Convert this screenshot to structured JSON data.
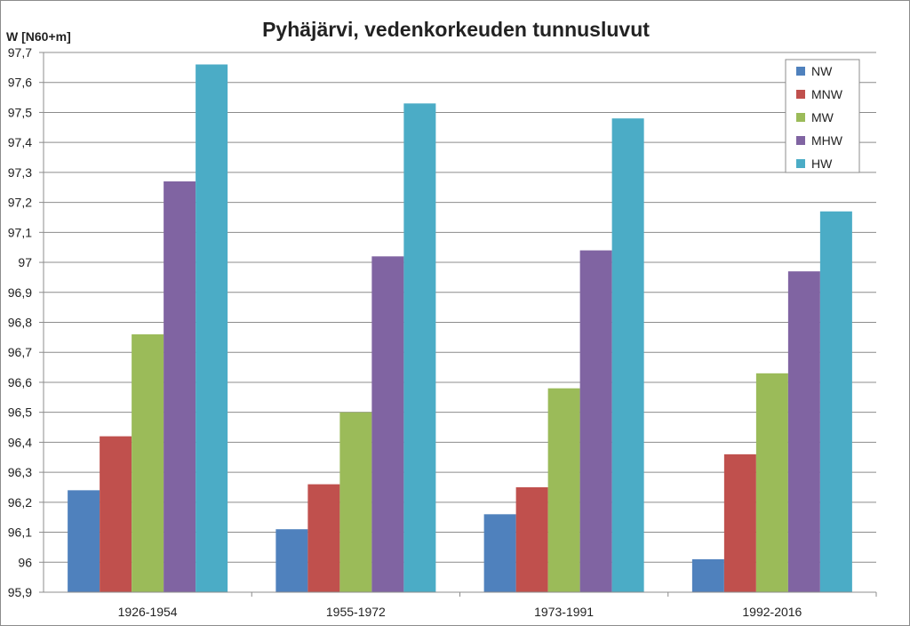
{
  "chart_data": {
    "type": "bar",
    "title": "Pyhäjärvi, vedenkorkeuden tunnusluvut",
    "ylabel": "W [N60+m]",
    "xlabel": "",
    "ylim": [
      95.9,
      97.7
    ],
    "yticks": [
      95.9,
      96,
      96.1,
      96.2,
      96.3,
      96.4,
      96.5,
      96.6,
      96.7,
      96.8,
      96.9,
      97,
      97.1,
      97.2,
      97.3,
      97.4,
      97.5,
      97.6,
      97.7
    ],
    "ytick_labels": [
      "95,9",
      "96",
      "96,1",
      "96,2",
      "96,3",
      "96,4",
      "96,5",
      "96,6",
      "96,7",
      "96,8",
      "96,9",
      "97",
      "97,1",
      "97,2",
      "97,3",
      "97,4",
      "97,5",
      "97,6",
      "97,7"
    ],
    "grid": "horizontal",
    "legend_position": "top-right",
    "categories": [
      "1926-1954",
      "1955-1972",
      "1973-1991",
      "1992-2016"
    ],
    "series": [
      {
        "name": "NW",
        "color": "#4f81bd",
        "values": [
          96.24,
          96.11,
          96.16,
          96.01
        ]
      },
      {
        "name": "MNW",
        "color": "#c0504d",
        "values": [
          96.42,
          96.26,
          96.25,
          96.36
        ]
      },
      {
        "name": "MW",
        "color": "#9bbb59",
        "values": [
          96.76,
          96.5,
          96.58,
          96.63
        ]
      },
      {
        "name": "MHW",
        "color": "#8064a2",
        "values": [
          97.27,
          97.02,
          97.04,
          96.97
        ]
      },
      {
        "name": "HW",
        "color": "#4bacc6",
        "values": [
          97.66,
          97.53,
          97.48,
          97.17
        ]
      }
    ]
  }
}
